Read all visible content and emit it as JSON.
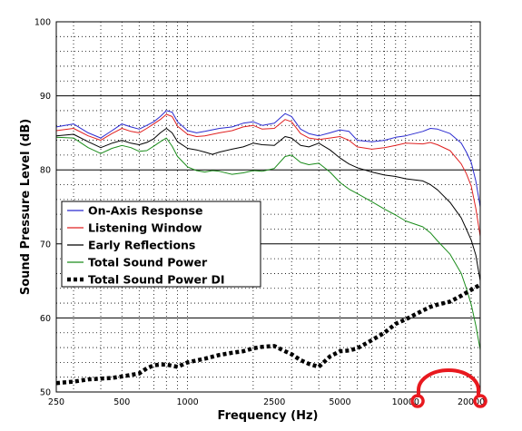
{
  "chart_data": {
    "type": "line",
    "xlabel": "Frequency (Hz)",
    "ylabel": "Sound Pressure Level (dB)",
    "xscale": "log",
    "xlim": [
      250,
      22000
    ],
    "ylim": [
      50,
      100
    ],
    "grid": true,
    "legend_position": "center-left",
    "x_ticks": [
      {
        "value": 250,
        "label": "250"
      },
      {
        "value": 500,
        "label": "500"
      },
      {
        "value": 1000,
        "label": "1000"
      },
      {
        "value": 2500,
        "label": "2500"
      },
      {
        "value": 5000,
        "label": "5000"
      },
      {
        "value": 10000,
        "label": "10000"
      },
      {
        "value": 20000,
        "label": "20000"
      }
    ],
    "y_ticks": [
      50,
      60,
      70,
      80,
      90,
      100
    ],
    "series": [
      {
        "name": "On-Axis Response",
        "color": "#2b2bd0",
        "style": "solid",
        "points": [
          [
            250,
            85.8
          ],
          [
            300,
            86.2
          ],
          [
            350,
            85.0
          ],
          [
            400,
            84.3
          ],
          [
            450,
            85.3
          ],
          [
            500,
            86.2
          ],
          [
            550,
            85.8
          ],
          [
            600,
            85.5
          ],
          [
            650,
            86.0
          ],
          [
            700,
            86.5
          ],
          [
            750,
            87.2
          ],
          [
            800,
            88.0
          ],
          [
            850,
            87.8
          ],
          [
            900,
            86.5
          ],
          [
            1000,
            85.3
          ],
          [
            1100,
            85.0
          ],
          [
            1200,
            85.2
          ],
          [
            1400,
            85.6
          ],
          [
            1600,
            85.8
          ],
          [
            1800,
            86.3
          ],
          [
            2000,
            86.5
          ],
          [
            2200,
            86.0
          ],
          [
            2500,
            86.3
          ],
          [
            2800,
            87.6
          ],
          [
            3000,
            87.2
          ],
          [
            3300,
            85.5
          ],
          [
            3600,
            84.9
          ],
          [
            4000,
            84.6
          ],
          [
            4500,
            85.0
          ],
          [
            5000,
            85.4
          ],
          [
            5500,
            85.2
          ],
          [
            6000,
            84.0
          ],
          [
            7000,
            83.8
          ],
          [
            8000,
            84.0
          ],
          [
            9000,
            84.4
          ],
          [
            10000,
            84.6
          ],
          [
            12000,
            85.2
          ],
          [
            13000,
            85.6
          ],
          [
            14000,
            85.5
          ],
          [
            16000,
            84.9
          ],
          [
            18000,
            83.6
          ],
          [
            19000,
            82.4
          ],
          [
            20000,
            81.0
          ],
          [
            21000,
            78.5
          ],
          [
            22000,
            75.0
          ]
        ]
      },
      {
        "name": "Listening Window",
        "color": "#e02020",
        "style": "solid",
        "points": [
          [
            250,
            85.3
          ],
          [
            300,
            85.6
          ],
          [
            350,
            84.6
          ],
          [
            400,
            84.0
          ],
          [
            450,
            84.9
          ],
          [
            500,
            85.6
          ],
          [
            550,
            85.2
          ],
          [
            600,
            85.0
          ],
          [
            650,
            85.6
          ],
          [
            700,
            86.2
          ],
          [
            750,
            86.8
          ],
          [
            800,
            87.5
          ],
          [
            850,
            87.2
          ],
          [
            900,
            85.9
          ],
          [
            1000,
            84.8
          ],
          [
            1100,
            84.5
          ],
          [
            1200,
            84.6
          ],
          [
            1400,
            85.0
          ],
          [
            1600,
            85.3
          ],
          [
            1800,
            85.8
          ],
          [
            2000,
            86.0
          ],
          [
            2200,
            85.5
          ],
          [
            2500,
            85.6
          ],
          [
            2800,
            86.8
          ],
          [
            3000,
            86.5
          ],
          [
            3300,
            84.9
          ],
          [
            3600,
            84.3
          ],
          [
            4000,
            84.1
          ],
          [
            4500,
            84.3
          ],
          [
            5000,
            84.5
          ],
          [
            5500,
            84.0
          ],
          [
            6000,
            83.1
          ],
          [
            7000,
            82.8
          ],
          [
            8000,
            83.0
          ],
          [
            9000,
            83.3
          ],
          [
            10000,
            83.6
          ],
          [
            12000,
            83.5
          ],
          [
            13000,
            83.7
          ],
          [
            14000,
            83.4
          ],
          [
            16000,
            82.6
          ],
          [
            18000,
            80.8
          ],
          [
            19000,
            79.5
          ],
          [
            20000,
            77.8
          ],
          [
            21000,
            74.8
          ],
          [
            22000,
            71.0
          ]
        ]
      },
      {
        "name": "Early Reflections",
        "color": "#000000",
        "style": "solid",
        "points": [
          [
            250,
            84.6
          ],
          [
            300,
            84.8
          ],
          [
            350,
            83.8
          ],
          [
            400,
            83.0
          ],
          [
            450,
            83.6
          ],
          [
            500,
            84.0
          ],
          [
            550,
            83.6
          ],
          [
            600,
            83.4
          ],
          [
            650,
            83.7
          ],
          [
            700,
            84.2
          ],
          [
            750,
            85.0
          ],
          [
            800,
            85.6
          ],
          [
            850,
            85.0
          ],
          [
            900,
            83.8
          ],
          [
            1000,
            82.9
          ],
          [
            1100,
            82.7
          ],
          [
            1200,
            82.4
          ],
          [
            1300,
            82.1
          ],
          [
            1400,
            82.4
          ],
          [
            1600,
            82.8
          ],
          [
            1800,
            83.1
          ],
          [
            2000,
            83.6
          ],
          [
            2200,
            83.4
          ],
          [
            2500,
            83.3
          ],
          [
            2800,
            84.5
          ],
          [
            3000,
            84.3
          ],
          [
            3300,
            83.3
          ],
          [
            3600,
            83.1
          ],
          [
            4000,
            83.6
          ],
          [
            4500,
            82.7
          ],
          [
            5000,
            81.6
          ],
          [
            5500,
            80.8
          ],
          [
            6000,
            80.3
          ],
          [
            7000,
            79.7
          ],
          [
            8000,
            79.3
          ],
          [
            9000,
            79.1
          ],
          [
            10000,
            78.8
          ],
          [
            12000,
            78.5
          ],
          [
            13000,
            78.0
          ],
          [
            14000,
            77.3
          ],
          [
            16000,
            75.6
          ],
          [
            18000,
            73.5
          ],
          [
            19000,
            72.0
          ],
          [
            20000,
            70.5
          ],
          [
            21000,
            68.5
          ],
          [
            22000,
            65.0
          ]
        ]
      },
      {
        "name": "Total Sound Power",
        "color": "#1a8c1a",
        "style": "solid",
        "points": [
          [
            250,
            84.4
          ],
          [
            300,
            84.3
          ],
          [
            350,
            83.0
          ],
          [
            400,
            82.2
          ],
          [
            450,
            82.9
          ],
          [
            500,
            83.3
          ],
          [
            550,
            83.0
          ],
          [
            600,
            82.5
          ],
          [
            650,
            82.6
          ],
          [
            700,
            83.2
          ],
          [
            750,
            83.8
          ],
          [
            800,
            84.3
          ],
          [
            850,
            83.2
          ],
          [
            900,
            81.8
          ],
          [
            1000,
            80.4
          ],
          [
            1100,
            79.9
          ],
          [
            1200,
            79.7
          ],
          [
            1300,
            79.9
          ],
          [
            1400,
            79.8
          ],
          [
            1600,
            79.4
          ],
          [
            1800,
            79.6
          ],
          [
            2000,
            79.9
          ],
          [
            2200,
            79.8
          ],
          [
            2500,
            80.2
          ],
          [
            2800,
            81.8
          ],
          [
            3000,
            82.0
          ],
          [
            3300,
            81.0
          ],
          [
            3600,
            80.7
          ],
          [
            4000,
            80.9
          ],
          [
            4500,
            79.7
          ],
          [
            5000,
            78.3
          ],
          [
            5500,
            77.4
          ],
          [
            6000,
            76.8
          ],
          [
            7000,
            75.7
          ],
          [
            8000,
            74.7
          ],
          [
            9000,
            73.9
          ],
          [
            10000,
            73.1
          ],
          [
            12000,
            72.3
          ],
          [
            13000,
            71.5
          ],
          [
            14000,
            70.4
          ],
          [
            16000,
            68.6
          ],
          [
            18000,
            66.0
          ],
          [
            19000,
            64.0
          ],
          [
            20000,
            61.8
          ],
          [
            21000,
            59.0
          ],
          [
            22000,
            55.7
          ]
        ]
      },
      {
        "name": "Total Sound Power DI",
        "color": "#000000",
        "style": "dotted",
        "points": [
          [
            250,
            51.2
          ],
          [
            300,
            51.4
          ],
          [
            350,
            51.7
          ],
          [
            400,
            51.8
          ],
          [
            450,
            51.9
          ],
          [
            500,
            52.1
          ],
          [
            550,
            52.3
          ],
          [
            600,
            52.5
          ],
          [
            650,
            53.2
          ],
          [
            700,
            53.6
          ],
          [
            750,
            53.7
          ],
          [
            800,
            53.7
          ],
          [
            900,
            53.4
          ],
          [
            1000,
            54.0
          ],
          [
            1200,
            54.5
          ],
          [
            1400,
            55.0
          ],
          [
            1600,
            55.3
          ],
          [
            1800,
            55.5
          ],
          [
            2000,
            55.9
          ],
          [
            2200,
            56.1
          ],
          [
            2500,
            56.2
          ],
          [
            2800,
            55.5
          ],
          [
            3000,
            55.1
          ],
          [
            3300,
            54.3
          ],
          [
            3600,
            53.8
          ],
          [
            4000,
            53.4
          ],
          [
            4500,
            54.8
          ],
          [
            5000,
            55.5
          ],
          [
            5500,
            55.6
          ],
          [
            6000,
            55.9
          ],
          [
            7000,
            57.0
          ],
          [
            8000,
            58.0
          ],
          [
            9000,
            59.2
          ],
          [
            10000,
            59.8
          ],
          [
            12000,
            61.0
          ],
          [
            13000,
            61.5
          ],
          [
            14000,
            61.8
          ],
          [
            16000,
            62.2
          ],
          [
            18000,
            63.0
          ],
          [
            20000,
            63.8
          ],
          [
            22000,
            64.5
          ]
        ]
      }
    ]
  },
  "legend": {
    "items": [
      {
        "label": "On-Axis Response",
        "color": "#2b2bd0",
        "style": "solid"
      },
      {
        "label": "Listening Window",
        "color": "#e02020",
        "style": "solid"
      },
      {
        "label": "Early Reflections",
        "color": "#000000",
        "style": "solid"
      },
      {
        "label": "Total Sound Power",
        "color": "#1a8c1a",
        "style": "solid"
      },
      {
        "label": "Total Sound Power DI",
        "color": "#000000",
        "style": "dotted"
      }
    ]
  },
  "logo": {
    "name": "headphone-logo-icon",
    "color": "#e8191f"
  }
}
